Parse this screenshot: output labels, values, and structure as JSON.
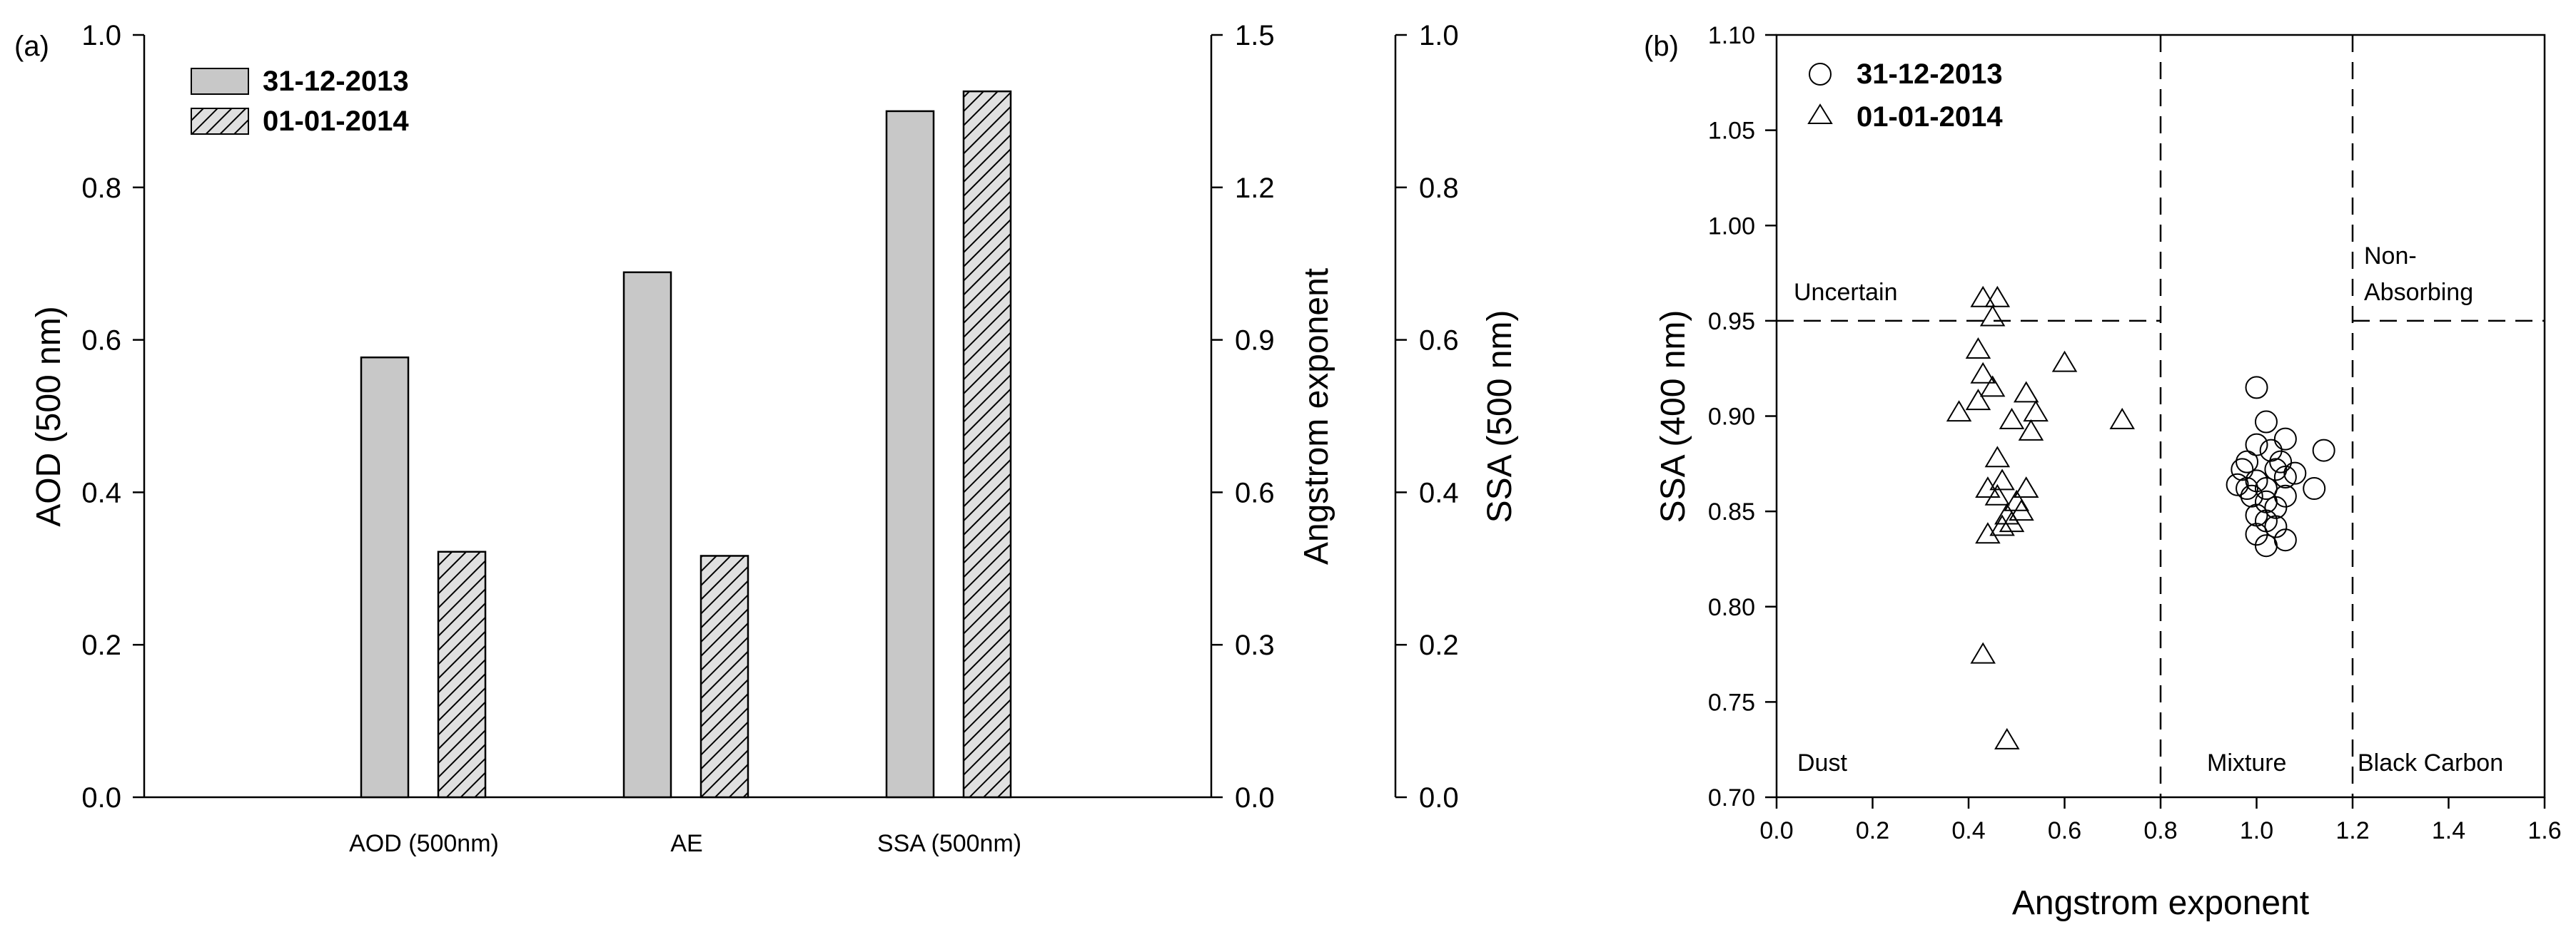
{
  "colors": {
    "bar_fill": "#c8c8c8",
    "hatch_bg": "#e0e0e0",
    "stroke": "#000000"
  },
  "chart_data": [
    {
      "type": "bar",
      "panel_label": "(a)",
      "categories": [
        "AOD (500nm)",
        "AE",
        "SSA (500nm)"
      ],
      "series": [
        {
          "name": "31-12-2013",
          "style": "solid",
          "values": [
            0.577,
            1.033,
            0.9
          ]
        },
        {
          "name": "01-01-2014",
          "style": "hatched",
          "values": [
            0.322,
            0.475,
            0.926
          ]
        }
      ],
      "series_axis": [
        "left",
        "right1",
        "right2"
      ],
      "axes": {
        "left": {
          "label": "AOD (500 nm)",
          "ylim": [
            0,
            1.0
          ],
          "ticks": [
            "0.0",
            "0.2",
            "0.4",
            "0.6",
            "0.8",
            "1.0"
          ]
        },
        "right1": {
          "label": "Angstrom exponent",
          "ylim": [
            0,
            1.5
          ],
          "ticks": [
            "0.0",
            "0.3",
            "0.6",
            "0.9",
            "1.2",
            "1.5"
          ]
        },
        "right2": {
          "label": "SSA (500 nm)",
          "ylim": [
            0,
            1.0
          ],
          "ticks": [
            "0.0",
            "0.2",
            "0.4",
            "0.6",
            "0.8",
            "1.0"
          ]
        }
      },
      "legend_position": "top-left"
    },
    {
      "type": "scatter",
      "panel_label": "(b)",
      "xlabel": "Angstrom exponent",
      "ylabel": "SSA (400 nm)",
      "xlim": [
        0,
        1.6
      ],
      "ylim": [
        0.7,
        1.1
      ],
      "xticks": [
        "0.0",
        "0.2",
        "0.4",
        "0.6",
        "0.8",
        "1.0",
        "1.2",
        "1.4",
        "1.6"
      ],
      "yticks": [
        "0.70",
        "0.75",
        "0.80",
        "0.85",
        "0.90",
        "0.95",
        "1.00",
        "1.05",
        "1.10"
      ],
      "series": [
        {
          "name": "31-12-2013",
          "marker": "circle",
          "points": [
            [
              1.0,
              0.915
            ],
            [
              1.02,
              0.897
            ],
            [
              1.06,
              0.888
            ],
            [
              1.14,
              0.882
            ],
            [
              1.0,
              0.885
            ],
            [
              0.98,
              0.876
            ],
            [
              1.04,
              0.872
            ],
            [
              0.96,
              0.864
            ],
            [
              0.98,
              0.862
            ],
            [
              1.0,
              0.866
            ],
            [
              1.02,
              0.862
            ],
            [
              1.06,
              0.868
            ],
            [
              1.12,
              0.862
            ],
            [
              0.99,
              0.858
            ],
            [
              1.02,
              0.855
            ],
            [
              1.04,
              0.852
            ],
            [
              1.0,
              0.848
            ],
            [
              1.02,
              0.845
            ],
            [
              1.04,
              0.842
            ],
            [
              1.0,
              0.838
            ],
            [
              1.06,
              0.835
            ],
            [
              1.02,
              0.832
            ],
            [
              1.05,
              0.876
            ],
            [
              1.08,
              0.87
            ],
            [
              1.03,
              0.882
            ],
            [
              0.97,
              0.872
            ],
            [
              1.06,
              0.858
            ]
          ]
        },
        {
          "name": "01-01-2014",
          "marker": "triangle",
          "points": [
            [
              0.43,
              0.962
            ],
            [
              0.46,
              0.962
            ],
            [
              0.45,
              0.952
            ],
            [
              0.42,
              0.935
            ],
            [
              0.43,
              0.922
            ],
            [
              0.45,
              0.915
            ],
            [
              0.6,
              0.928
            ],
            [
              0.42,
              0.908
            ],
            [
              0.38,
              0.902
            ],
            [
              0.52,
              0.912
            ],
            [
              0.54,
              0.902
            ],
            [
              0.49,
              0.898
            ],
            [
              0.53,
              0.892
            ],
            [
              0.72,
              0.898
            ],
            [
              0.46,
              0.878
            ],
            [
              0.44,
              0.862
            ],
            [
              0.47,
              0.866
            ],
            [
              0.46,
              0.858
            ],
            [
              0.52,
              0.862
            ],
            [
              0.5,
              0.855
            ],
            [
              0.51,
              0.85
            ],
            [
              0.48,
              0.848
            ],
            [
              0.49,
              0.844
            ],
            [
              0.47,
              0.842
            ],
            [
              0.44,
              0.838
            ],
            [
              0.43,
              0.775
            ],
            [
              0.48,
              0.73
            ]
          ]
        }
      ],
      "reference_lines": {
        "vertical_x": [
          0.8,
          1.2
        ],
        "horizontal_y": 0.95
      },
      "region_labels": {
        "uncertain": "Uncertain",
        "non_absorbing_1": "Non-",
        "non_absorbing_2": "Absorbing",
        "dust": "Dust",
        "mixture": "Mixture",
        "black_carbon": "Black Carbon"
      },
      "legend_position": "top-left"
    }
  ]
}
